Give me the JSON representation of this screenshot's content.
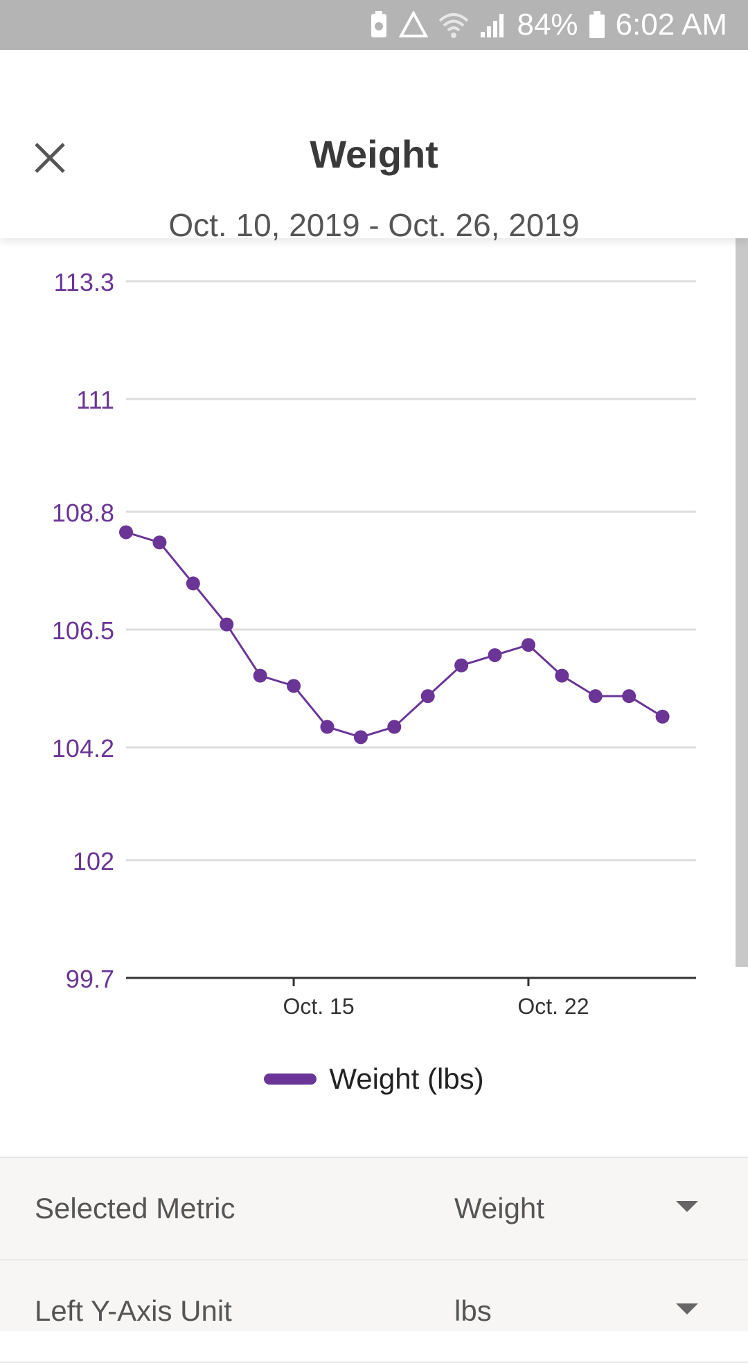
{
  "status_bar": {
    "battery_percent": "84%",
    "time": "6:02 AM"
  },
  "header": {
    "title": "Weight",
    "date_range": "Oct. 10, 2019 - Oct. 26, 2019",
    "close_icon": "close-icon"
  },
  "chart_data": {
    "type": "line",
    "x": [
      "2019-10-10",
      "2019-10-11",
      "2019-10-12",
      "2019-10-13",
      "2019-10-14",
      "2019-10-15",
      "2019-10-16",
      "2019-10-17",
      "2019-10-18",
      "2019-10-19",
      "2019-10-20",
      "2019-10-21",
      "2019-10-22",
      "2019-10-23",
      "2019-10-24",
      "2019-10-25",
      "2019-10-26"
    ],
    "series": [
      {
        "name": "Weight (lbs)",
        "color": "#6a3596",
        "values": [
          108.4,
          108.2,
          107.4,
          106.6,
          105.6,
          105.4,
          104.6,
          104.4,
          104.6,
          105.2,
          105.8,
          106.0,
          106.2,
          105.6,
          105.2,
          105.2,
          104.8
        ]
      }
    ],
    "y_ticks": [
      "113.3",
      "111",
      "108.8",
      "106.5",
      "104.2",
      "102",
      "99.7"
    ],
    "ylim": [
      99.7,
      113.3
    ],
    "x_ticks": [
      {
        "label": "Oct. 15",
        "date": "2019-10-15"
      },
      {
        "label": "Oct. 22",
        "date": "2019-10-22"
      }
    ],
    "grid": true,
    "legend_position": "bottom-center"
  },
  "legend": {
    "label": "Weight (lbs)"
  },
  "settings": [
    {
      "label": "Selected Metric",
      "value": "Weight"
    },
    {
      "label": "Left Y-Axis Unit",
      "value": "lbs"
    }
  ],
  "colors": {
    "accent": "#6a3596",
    "grid": "#dddddd",
    "status_bar": "#b4b4b4"
  }
}
